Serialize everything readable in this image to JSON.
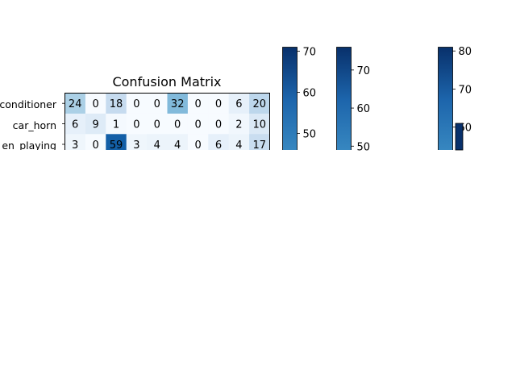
{
  "chart_data": [
    {
      "type": "heatmap",
      "title": "Confusion Matrix",
      "rows": [
        "air_conditioner",
        "car_horn",
        "children_playing"
      ],
      "row_labels_visible": [
        "conditioner",
        "car_horn",
        "en_playing"
      ],
      "values": [
        [
          24,
          0,
          18,
          0,
          0,
          32,
          0,
          0,
          6,
          20
        ],
        [
          6,
          9,
          1,
          0,
          0,
          0,
          0,
          0,
          2,
          10
        ],
        [
          3,
          0,
          59,
          3,
          4,
          4,
          0,
          6,
          4,
          17
        ]
      ],
      "colormap": "Blues",
      "cell_text_color": "#000000"
    },
    {
      "type": "colorbar",
      "colormap": "Blues",
      "ticks": [
        50,
        60,
        70
      ],
      "range": [
        46,
        71
      ]
    },
    {
      "type": "colorbar",
      "colormap": "Blues",
      "ticks": [
        50,
        60,
        70
      ],
      "range": [
        49,
        76
      ]
    },
    {
      "type": "colorbar",
      "colormap": "Blues",
      "ticks": [
        60,
        70,
        80
      ],
      "range": [
        54,
        81
      ]
    }
  ]
}
